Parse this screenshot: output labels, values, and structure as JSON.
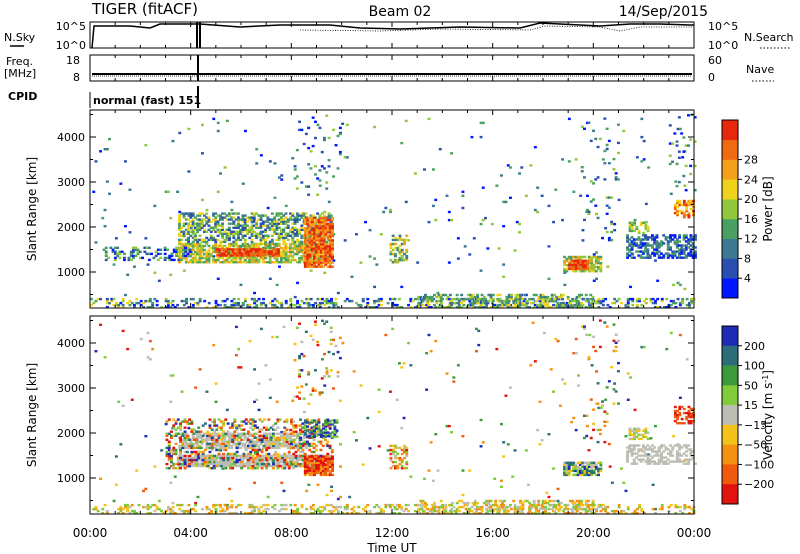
{
  "header": {
    "radar": "TIGER (fitACF)",
    "beam": "Beam 02",
    "date": "14/Sep/2015"
  },
  "noise_panel": {
    "left_label": "N.Sky",
    "right_label": "N.Search",
    "left_ticks": [
      "10^5",
      "10^0"
    ],
    "right_ticks": [
      "10^5",
      "10^0"
    ]
  },
  "freq_panel": {
    "left_label": "Freq.",
    "left_unit": "[MHz]",
    "right_label": "Nave",
    "left_ticks": [
      "18",
      "8"
    ],
    "right_ticks": [
      "60",
      "0"
    ]
  },
  "cpid": {
    "label": "CPID",
    "mode": "normal (fast) 151"
  },
  "xaxis": {
    "label": "Time UT",
    "ticks": [
      "00:00",
      "04:00",
      "08:00",
      "12:00",
      "16:00",
      "20:00",
      "00:00"
    ]
  },
  "chart_data": [
    {
      "type": "heatmap",
      "name": "power",
      "ylabel": "Slant Range [km]",
      "yticks": [
        "1000",
        "2000",
        "3000",
        "4000"
      ],
      "ylim": [
        200,
        4600
      ],
      "xlim_hours": [
        0,
        24
      ],
      "colorbar_label": "Power [dB]",
      "colorbar_ticks": [
        "4",
        "8",
        "12",
        "16",
        "20",
        "24",
        "28"
      ],
      "colorbar_colors": [
        "#0018ff",
        "#2a4fb0",
        "#3b7a90",
        "#4aa060",
        "#8fc83a",
        "#f0d21c",
        "#f3a01a",
        "#f06a12",
        "#e8280c"
      ]
    },
    {
      "type": "heatmap",
      "name": "velocity",
      "ylabel": "Slant Range [km]",
      "yticks": [
        "1000",
        "2000",
        "3000",
        "4000"
      ],
      "ylim": [
        200,
        4600
      ],
      "xlim_hours": [
        0,
        24
      ],
      "colorbar_label": "Velocity [m s",
      "colorbar_label_sup": "-1",
      "colorbar_label_end": "]",
      "colorbar_ticks": [
        "200",
        "100",
        "50",
        "15",
        "−15",
        "−50",
        "−100",
        "−200"
      ],
      "colorbar_colors": [
        "#1e2bb5",
        "#2b6e7a",
        "#3d9a3a",
        "#7fcb3a",
        "#bdbdb5",
        "#f4c21a",
        "#f29112",
        "#ef5a0e",
        "#e2120c"
      ]
    }
  ]
}
